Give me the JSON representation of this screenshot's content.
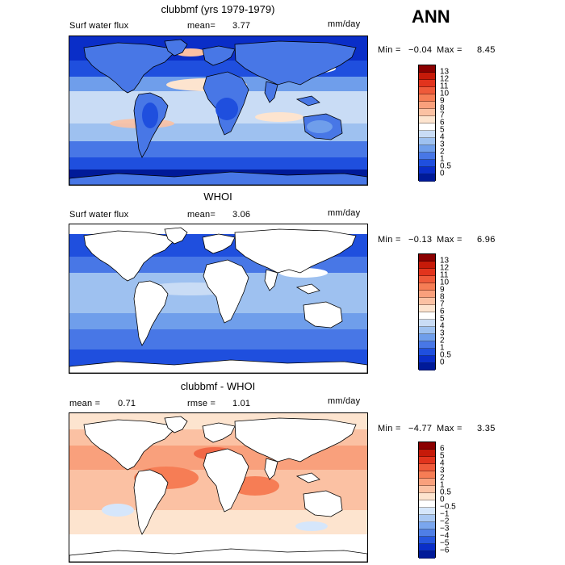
{
  "season": "ANN",
  "panels": [
    {
      "title": "clubbmf (yrs 1979-1979)",
      "variable": "Surf water flux",
      "stat1_label": "mean=",
      "stat1_value": "3.77",
      "stat2_label": "",
      "stat2_value": "",
      "units": "mm/day",
      "min_label": "Min =",
      "min_value": "−0.04",
      "max_label": "Max =",
      "max_value": "8.45",
      "colorbar": {
        "labels": [
          "13",
          "12",
          "11",
          "10",
          "9",
          "8",
          "7",
          "6",
          "5",
          "4",
          "3",
          "2",
          "1",
          "0.5",
          "0"
        ],
        "colors": [
          "#8b0000",
          "#c61a09",
          "#e2341d",
          "#ef5a3a",
          "#f67d55",
          "#f9a07c",
          "#fbc1a3",
          "#fde4cf",
          "#ffffff",
          "#c9dcf5",
          "#9ec1f0",
          "#6f9eeb",
          "#4877e6",
          "#1f4fde",
          "#0a2ec8",
          "#001a99"
        ]
      },
      "land_masked": false
    },
    {
      "title": "WHOI",
      "variable": "Surf water flux",
      "stat1_label": "mean=",
      "stat1_value": "3.06",
      "stat2_label": "",
      "stat2_value": "",
      "units": "mm/day",
      "min_label": "Min =",
      "min_value": "−0.13",
      "max_label": "Max =",
      "max_value": "6.96",
      "colorbar": {
        "labels": [
          "13",
          "12",
          "11",
          "10",
          "9",
          "8",
          "7",
          "6",
          "5",
          "4",
          "3",
          "2",
          "1",
          "0.5",
          "0"
        ],
        "colors": [
          "#8b0000",
          "#c61a09",
          "#e2341d",
          "#ef5a3a",
          "#f67d55",
          "#f9a07c",
          "#fbc1a3",
          "#fde4cf",
          "#ffffff",
          "#c9dcf5",
          "#9ec1f0",
          "#6f9eeb",
          "#4877e6",
          "#1f4fde",
          "#0a2ec8",
          "#001a99"
        ]
      },
      "land_masked": true
    },
    {
      "title": "clubbmf - WHOI",
      "variable": "",
      "stat1_label": "mean =",
      "stat1_value": "0.71",
      "stat2_label": "rmse =",
      "stat2_value": "1.01",
      "units": "mm/day",
      "min_label": "Min =",
      "min_value": "−4.77",
      "max_label": "Max =",
      "max_value": "3.35",
      "colorbar": {
        "labels": [
          "6",
          "5",
          "4",
          "3",
          "2",
          "1",
          "0.5",
          "0",
          "−0.5",
          "−1",
          "−2",
          "−3",
          "−4",
          "−5",
          "−6"
        ],
        "colors": [
          "#8b0000",
          "#c61a09",
          "#e2341d",
          "#ef5a3a",
          "#f67d55",
          "#f9a07c",
          "#fbc1a3",
          "#fde4cf",
          "#ffffff",
          "#d5e6fb",
          "#a9c8f3",
          "#7aa6ee",
          "#4f7fe6",
          "#2656de",
          "#0a2ec8",
          "#001a99"
        ]
      },
      "land_masked": true
    }
  ]
}
